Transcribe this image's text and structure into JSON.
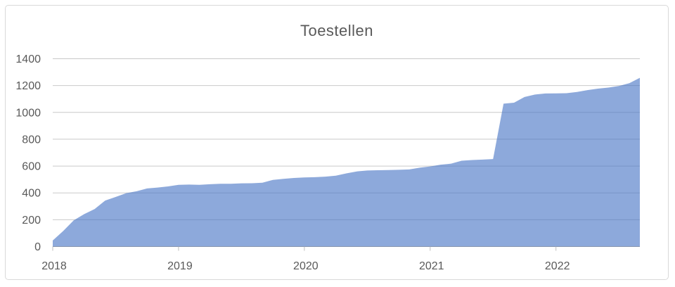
{
  "chart_data": {
    "type": "area",
    "title": "Toestellen",
    "x_unit": "month",
    "start": "2018-01",
    "end": "2022-09",
    "values": [
      45,
      116,
      195,
      242,
      280,
      343,
      370,
      398,
      412,
      433,
      440,
      448,
      460,
      462,
      460,
      465,
      468,
      468,
      471,
      472,
      476,
      497,
      505,
      511,
      515,
      517,
      521,
      528,
      545,
      560,
      567,
      569,
      570,
      572,
      575,
      588,
      597,
      610,
      618,
      640,
      645,
      648,
      652,
      1065,
      1072,
      1115,
      1133,
      1141,
      1142,
      1143,
      1152,
      1166,
      1177,
      1185,
      1197,
      1218,
      1258
    ],
    "x_tick_labels": [
      "2018",
      "2019",
      "2020",
      "2021",
      "2022"
    ],
    "months_per_x_tick": 12,
    "y_ticks": [
      0,
      200,
      400,
      600,
      800,
      1000,
      1200,
      1400
    ],
    "ylim": [
      0,
      1400
    ],
    "grid": "horizontal-only",
    "legend": "none",
    "colors": {
      "area_fill": "#4472C4",
      "area_fill_opacity": 0.61,
      "gridline": "#C9C9C9",
      "axis_line": "#A6A6A6",
      "tick_mark": "#BFBFBF",
      "label_text": "#595959",
      "title_text": "#595959",
      "frame_border": "#D9D9D9",
      "background": "#FFFFFF"
    }
  }
}
